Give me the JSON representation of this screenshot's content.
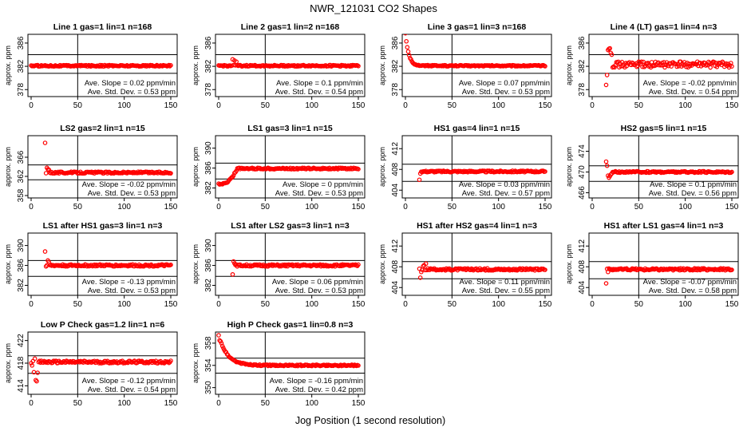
{
  "figure": {
    "title": "NWR_121031  CO2 Shapes",
    "xlabel": "Jog Position (1 second resolution)",
    "marker_color": "#ff0000"
  },
  "chart_data": [
    {
      "type": "scatter",
      "title": "Line 1 gas=1 lin=1 n=168",
      "ylabel": "approx. ppm",
      "xlim": [
        0,
        150
      ],
      "ylim": [
        376.8,
        387.5
      ],
      "xticks": [
        0,
        50,
        100,
        150
      ],
      "yticks": [
        378,
        382,
        386
      ],
      "hlines": [
        384.0,
        380.8
      ],
      "vline": 50,
      "slope": "Ave. Slope =  0.02  ppm/min",
      "stddev": "Ave. Std. Dev. =  0.53  ppm",
      "shape": {
        "base": 382.1,
        "noise": 0.12,
        "start": 0,
        "spikes": []
      }
    },
    {
      "type": "scatter",
      "title": "Line 2 gas=1 lin=2 n=168",
      "ylabel": "approx. ppm",
      "xlim": [
        0,
        150
      ],
      "ylim": [
        376.8,
        387.5
      ],
      "xticks": [
        0,
        50,
        100,
        150
      ],
      "yticks": [
        378,
        382,
        386
      ],
      "hlines": [
        384.0,
        380.8
      ],
      "vline": 50,
      "slope": "Ave. Slope =  0.1  ppm/min",
      "stddev": "Ave. Std. Dev. =  0.54  ppm",
      "shape": {
        "base": 382.1,
        "noise": 0.12,
        "start": 0,
        "spikes": [
          [
            15,
            383.2
          ],
          [
            17,
            383.0
          ],
          [
            19,
            382.8
          ]
        ]
      }
    },
    {
      "type": "scatter",
      "title": "Line 3 gas=1 lin=3 n=168",
      "ylabel": "approx. ppm",
      "xlim": [
        0,
        150
      ],
      "ylim": [
        376.8,
        387.5
      ],
      "xticks": [
        0,
        50,
        100,
        150
      ],
      "yticks": [
        378,
        382,
        386
      ],
      "hlines": [
        384.0,
        380.8
      ],
      "vline": 50,
      "slope": "Ave. Slope =  0.07  ppm/min",
      "stddev": "Ave. Std. Dev. =  0.53  ppm",
      "shape": {
        "base": 382.1,
        "noise": 0.1,
        "start": 0,
        "decay": {
          "amp": 5.5,
          "tau": 3.5
        }
      }
    },
    {
      "type": "scatter",
      "title": "Line 4 (LT) gas=1 lin=4 n=3",
      "ylabel": "approx. ppm",
      "xlim": [
        0,
        150
      ],
      "ylim": [
        376.8,
        387.5
      ],
      "xticks": [
        0,
        50,
        100,
        150
      ],
      "yticks": [
        378,
        382,
        386
      ],
      "hlines": [
        384.0,
        380.8
      ],
      "vline": 50,
      "slope": "Ave. Slope =  -0.02  ppm/min",
      "stddev": "Ave. Std. Dev. =  0.54  ppm",
      "shape": {
        "base": 382.3,
        "noise": 0.5,
        "start": 15,
        "spikes": [
          [
            15,
            378.8
          ],
          [
            16,
            380.5
          ],
          [
            17,
            384.8
          ],
          [
            18,
            385.0
          ],
          [
            19,
            385.1
          ],
          [
            20,
            384.3
          ],
          [
            21,
            384.0
          ]
        ]
      }
    },
    {
      "type": "scatter",
      "title": "LS2 gas=2 lin=1 n=15",
      "ylabel": "approx. ppm",
      "xlim": [
        0,
        150
      ],
      "ylim": [
        357.5,
        370.5
      ],
      "xticks": [
        0,
        50,
        100,
        150
      ],
      "yticks": [
        358,
        362,
        366
      ],
      "hlines": [
        364.4,
        361.3
      ],
      "vline": 50,
      "slope": "Ave. Slope =  -0.02  ppm/min",
      "stddev": "Ave. Std. Dev. =  0.53  ppm",
      "shape": {
        "base": 362.8,
        "noise": 0.18,
        "start": 15,
        "spikes": [
          [
            15,
            369.0
          ],
          [
            17,
            363.8
          ],
          [
            18,
            363.5
          ],
          [
            19,
            363.4
          ]
        ]
      }
    },
    {
      "type": "scatter",
      "title": "LS1 gas=3 lin=1 n=15",
      "ylabel": "approx. ppm",
      "xlim": [
        0,
        150
      ],
      "ylim": [
        380,
        392.5
      ],
      "xticks": [
        0,
        50,
        100,
        150
      ],
      "yticks": [
        382,
        386,
        390
      ],
      "hlines": [
        387.0,
        383.8
      ],
      "vline": 50,
      "slope": "Ave. Slope =  0  ppm/min",
      "stddev": "Ave. Std. Dev. =  0.53  ppm",
      "shape": {
        "base": 385.9,
        "noise": 0.15,
        "start": 0,
        "rise": {
          "from": 382.8,
          "to": 385.9,
          "x0": 3,
          "x1": 20
        }
      }
    },
    {
      "type": "scatter",
      "title": "HS1 gas=4 lin=1 n=15",
      "ylabel": "approx. ppm",
      "xlim": [
        0,
        150
      ],
      "ylim": [
        402.5,
        414.5
      ],
      "xticks": [
        0,
        50,
        100,
        150
      ],
      "yticks": [
        404,
        408,
        412
      ],
      "hlines": [
        409.0,
        405.7
      ],
      "vline": 50,
      "slope": "Ave. Slope =  0.03  ppm/min",
      "stddev": "Ave. Std. Dev. =  0.57  ppm",
      "shape": {
        "base": 407.6,
        "noise": 0.15,
        "start": 15,
        "spikes": [
          [
            14,
            402.8
          ],
          [
            15,
            406.0
          ],
          [
            16,
            407.2
          ]
        ]
      }
    },
    {
      "type": "scatter",
      "title": "HS2 gas=5 lin=1 n=15",
      "ylabel": "approx. ppm",
      "xlim": [
        0,
        150
      ],
      "ylim": [
        465,
        477
      ],
      "xticks": [
        0,
        50,
        100,
        150
      ],
      "yticks": [
        466,
        470,
        474
      ],
      "hlines": [
        471.2,
        468.2
      ],
      "vline": 50,
      "slope": "Ave. Slope =  0.1  ppm/min",
      "stddev": "Ave. Std. Dev. =  0.56  ppm",
      "shape": {
        "base": 470.0,
        "noise": 0.15,
        "start": 15,
        "spikes": [
          [
            15,
            472.0
          ],
          [
            16,
            471.2
          ],
          [
            17,
            469.3
          ],
          [
            18,
            468.9
          ],
          [
            19,
            469.2
          ],
          [
            20,
            469.5
          ],
          [
            21,
            469.7
          ]
        ]
      }
    },
    {
      "type": "scatter",
      "title": "LS1 after HS1 gas=3 lin=1 n=3",
      "ylabel": "approx. ppm",
      "xlim": [
        0,
        150
      ],
      "ylim": [
        380,
        392.5
      ],
      "xticks": [
        0,
        50,
        100,
        150
      ],
      "yticks": [
        382,
        386,
        390
      ],
      "hlines": [
        387.0,
        383.8
      ],
      "vline": 50,
      "slope": "Ave. Slope =  -0.13  ppm/min",
      "stddev": "Ave. Std. Dev. =  0.53  ppm",
      "shape": {
        "base": 386.0,
        "noise": 0.2,
        "start": 15,
        "spikes": [
          [
            15,
            388.8
          ],
          [
            16,
            385.8
          ],
          [
            18,
            387.0
          ],
          [
            19,
            386.7
          ]
        ]
      }
    },
    {
      "type": "scatter",
      "title": "LS1 after LS2 gas=3 lin=1 n=3",
      "ylabel": "approx. ppm",
      "xlim": [
        0,
        150
      ],
      "ylim": [
        380,
        392.5
      ],
      "xticks": [
        0,
        50,
        100,
        150
      ],
      "yticks": [
        382,
        386,
        390
      ],
      "hlines": [
        387.0,
        383.8
      ],
      "vline": 50,
      "slope": "Ave. Slope =  0.06  ppm/min",
      "stddev": "Ave. Std. Dev. =  0.53  ppm",
      "shape": {
        "base": 386.0,
        "noise": 0.2,
        "start": 15,
        "spikes": [
          [
            15,
            384.2
          ],
          [
            16,
            386.8
          ],
          [
            17,
            386.4
          ]
        ]
      }
    },
    {
      "type": "scatter",
      "title": "HS1 after HS2 gas=4 lin=1 n=3",
      "ylabel": "approx. ppm",
      "xlim": [
        0,
        150
      ],
      "ylim": [
        402.5,
        414.5
      ],
      "xticks": [
        0,
        50,
        100,
        150
      ],
      "yticks": [
        404,
        408,
        412
      ],
      "hlines": [
        409.0,
        405.7
      ],
      "vline": 50,
      "slope": "Ave. Slope =  0.11  ppm/min",
      "stddev": "Ave. Std. Dev. =  0.55  ppm",
      "shape": {
        "base": 407.5,
        "noise": 0.2,
        "start": 15,
        "spikes": [
          [
            16,
            405.9
          ],
          [
            17,
            407.0
          ],
          [
            19,
            408.1
          ],
          [
            20,
            408.3
          ],
          [
            22,
            408.6
          ]
        ]
      }
    },
    {
      "type": "scatter",
      "title": "HS1 after LS1 gas=4 lin=1 n=3",
      "ylabel": "approx. ppm",
      "xlim": [
        0,
        150
      ],
      "ylim": [
        402.5,
        414.5
      ],
      "xticks": [
        0,
        50,
        100,
        150
      ],
      "yticks": [
        404,
        408,
        412
      ],
      "hlines": [
        409.0,
        405.7
      ],
      "vline": 50,
      "slope": "Ave. Slope =  -0.07  ppm/min",
      "stddev": "Ave. Std. Dev. =  0.58  ppm",
      "shape": {
        "base": 407.5,
        "noise": 0.2,
        "start": 15,
        "spikes": [
          [
            15,
            404.8
          ],
          [
            16,
            407.6
          ],
          [
            17,
            407.0
          ]
        ]
      }
    },
    {
      "type": "scatter",
      "title": "Low P Check gas=1.2 lin=1 n=6",
      "ylabel": "approx. ppm",
      "xlim": [
        0,
        150
      ],
      "ylim": [
        412.5,
        423.5
      ],
      "xticks": [
        0,
        50,
        100,
        150
      ],
      "yticks": [
        414,
        418,
        422
      ],
      "hlines": [
        419.3,
        416.2
      ],
      "vline": 50,
      "slope": "Ave. Slope =  -0.12  ppm/min",
      "stddev": "Ave. Std. Dev. =  0.54  ppm",
      "shape": {
        "base": 418.2,
        "noise": 0.22,
        "start": 0,
        "spikes": [
          [
            1,
            417.6
          ],
          [
            3,
            416.4
          ],
          [
            4,
            418.8
          ],
          [
            5,
            415.0
          ],
          [
            6,
            414.8
          ],
          [
            7,
            416.3
          ]
        ]
      }
    },
    {
      "type": "scatter",
      "title": "High P Check gas=1 lin=0.8 n=3",
      "ylabel": "approx. ppm",
      "xlim": [
        0,
        150
      ],
      "ylim": [
        348.8,
        360
      ],
      "xticks": [
        0,
        50,
        100,
        150
      ],
      "yticks": [
        350,
        354,
        358
      ],
      "hlines": [
        355.3,
        352.6
      ],
      "vline": 50,
      "slope": "Ave. Slope =  -0.16  ppm/min",
      "stddev": "Ave. Std. Dev. =  0.42  ppm",
      "shape": {
        "base": 354.0,
        "noise": 0.12,
        "start": 0,
        "decay": {
          "amp": 5.5,
          "tau": 9
        },
        "spikes": [
          [
            1,
            358.5
          ]
        ]
      }
    }
  ]
}
